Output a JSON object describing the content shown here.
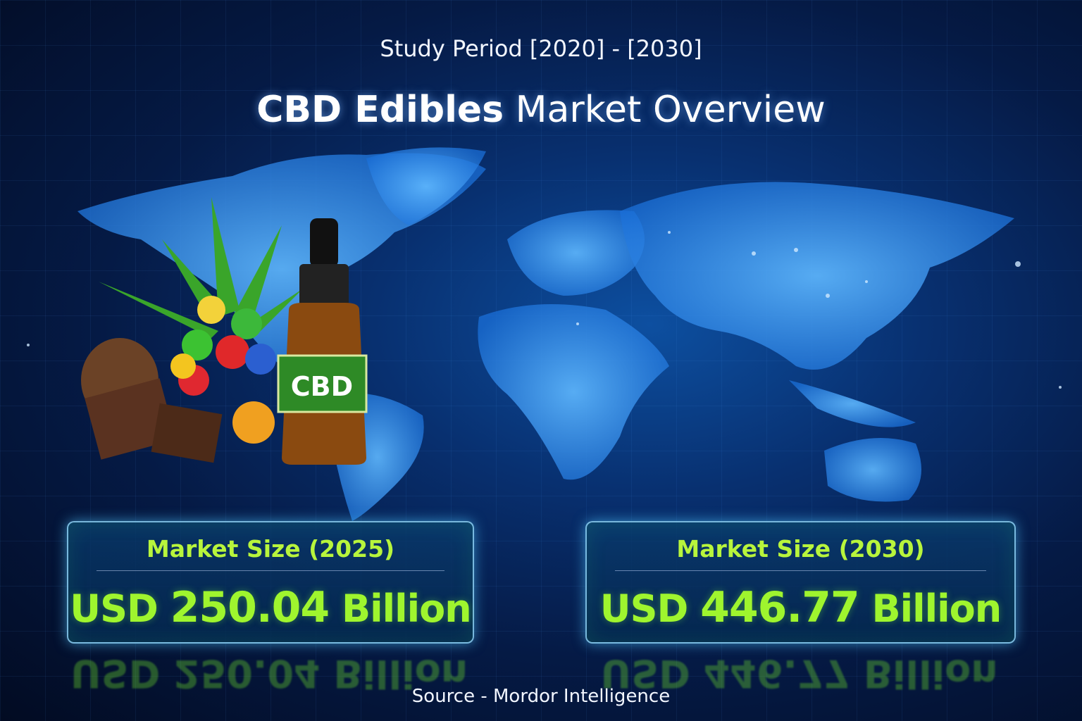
{
  "header": {
    "study_period": "Study Period  [2020] - [2030]",
    "title_bold": "CBD Edibles",
    "title_rest": " Market Overview"
  },
  "product": {
    "bottle_label": "CBD"
  },
  "cards": [
    {
      "label": "Market Size (2025)",
      "prefix": "USD ",
      "value": "250.04",
      "suffix": " Billion",
      "full": "USD 250.04 Billion"
    },
    {
      "label": "Market Size (2030)",
      "prefix": "USD ",
      "value": "446.77",
      "suffix": " Billion",
      "full": "USD 446.77 Billion"
    }
  ],
  "footer": {
    "source": "Source - Mordor Intelligence"
  },
  "colors": {
    "accent_green": "#9ff52e",
    "background": "#051a45",
    "map_blue": "#2a8cff"
  }
}
